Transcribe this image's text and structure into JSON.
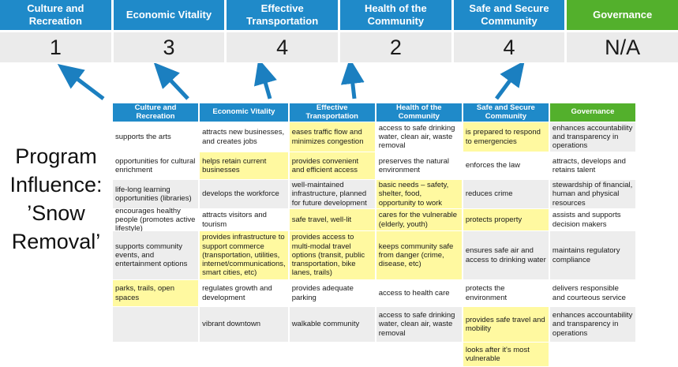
{
  "colors": {
    "blue": "#1F8AC9",
    "green": "#53B02C",
    "arrow": "#1B7FC0",
    "score_bg": "#EBEBEB",
    "band_gray": "#EDEDED",
    "highlight_yellow": "#FFF9A0"
  },
  "left_label": {
    "lines": [
      "Program",
      "Influence:",
      "’Snow",
      "Removal’"
    ]
  },
  "score_band": {
    "columns": [
      {
        "label": "Culture and Recreation",
        "score": "1",
        "color": "blue"
      },
      {
        "label": "Economic Vitality",
        "score": "3",
        "color": "blue"
      },
      {
        "label": "Effective Transportation",
        "score": "4",
        "color": "blue"
      },
      {
        "label": "Health of the Community",
        "score": "2",
        "color": "blue"
      },
      {
        "label": "Safe and Secure Community",
        "score": "4",
        "color": "blue"
      },
      {
        "label": "Governance",
        "score": "N/A",
        "color": "green"
      }
    ]
  },
  "matrix": {
    "headers": [
      {
        "label": "Culture and Recreation",
        "color": "blue"
      },
      {
        "label": "Economic Vitality",
        "color": "blue"
      },
      {
        "label": "Effective Transportation",
        "color": "blue"
      },
      {
        "label": "Health of the Community",
        "color": "blue"
      },
      {
        "label": "Safe and Secure Community",
        "color": "blue"
      },
      {
        "label": "Governance",
        "color": "green"
      }
    ],
    "rows": [
      {
        "cells": [
          {
            "text": "supports the arts",
            "bg": "white"
          },
          {
            "text": "attracts new businesses, and creates jobs",
            "bg": "white"
          },
          {
            "text": "eases traffic flow and minimizes congestion",
            "bg": "yellow"
          },
          {
            "text": "access to safe drinking water, clean air, waste removal",
            "bg": "white"
          },
          {
            "text": "is prepared to respond to emergencies",
            "bg": "yellow"
          },
          {
            "text": "enhances accountability and transparency in operations",
            "bg": "gray"
          }
        ]
      },
      {
        "cells": [
          {
            "text": "opportunities for cultural enrichment",
            "bg": "white"
          },
          {
            "text": "helps retain current businesses",
            "bg": "yellow"
          },
          {
            "text": "provides convenient and efficient access",
            "bg": "yellow"
          },
          {
            "text": "preserves the natural environment",
            "bg": "white"
          },
          {
            "text": "enforces the law",
            "bg": "white"
          },
          {
            "text": "attracts, develops and retains talent",
            "bg": "white"
          }
        ]
      },
      {
        "cells": [
          {
            "text": "life-long learning opportunities (libraries)",
            "bg": "gray"
          },
          {
            "text": "develops the workforce",
            "bg": "gray"
          },
          {
            "text": "well-maintained infrastructure, planned for future development",
            "bg": "gray"
          },
          {
            "text": "basic needs – safety, shelter, food, opportunity to work",
            "bg": "yellow"
          },
          {
            "text": "reduces crime",
            "bg": "gray"
          },
          {
            "text": "stewardship of financial, human and physical resources",
            "bg": "gray"
          }
        ]
      },
      {
        "cells": [
          {
            "text": "encourages healthy people (promotes active lifestyle)",
            "bg": "white"
          },
          {
            "text": "attracts visitors and tourism",
            "bg": "white"
          },
          {
            "text": "safe travel, well-lit",
            "bg": "yellow"
          },
          {
            "text": "cares for the vulnerable (elderly, youth)",
            "bg": "yellow"
          },
          {
            "text": "protects property",
            "bg": "yellow"
          },
          {
            "text": "assists and supports decision makers",
            "bg": "white"
          }
        ]
      },
      {
        "cells": [
          {
            "text": "supports community events, and entertainment options",
            "bg": "gray"
          },
          {
            "text": "provides infrastructure to support commerce (transportation, utilities, internet/communications, smart cities, etc)",
            "bg": "yellow"
          },
          {
            "text": "provides access to multi-modal travel options (transit, public transportation, bike lanes, trails)",
            "bg": "yellow"
          },
          {
            "text": "keeps community safe from danger (crime, disease, etc)",
            "bg": "yellow"
          },
          {
            "text": "ensures safe air and access to drinking water",
            "bg": "gray"
          },
          {
            "text": "maintains regulatory compliance",
            "bg": "gray"
          }
        ]
      },
      {
        "cells": [
          {
            "text": "parks, trails, open spaces",
            "bg": "yellow"
          },
          {
            "text": "regulates growth and development",
            "bg": "white"
          },
          {
            "text": "provides adequate parking",
            "bg": "white"
          },
          {
            "text": "access to health care",
            "bg": "white"
          },
          {
            "text": "protects the environment",
            "bg": "white"
          },
          {
            "text": "delivers responsible and courteous service",
            "bg": "white"
          }
        ]
      },
      {
        "cells": [
          {
            "text": "",
            "bg": "gray"
          },
          {
            "text": "vibrant downtown",
            "bg": "gray"
          },
          {
            "text": "walkable community",
            "bg": "gray"
          },
          {
            "text": "access to safe drinking water, clean air, waste removal",
            "bg": "gray"
          },
          {
            "text": "provides safe travel and mobility",
            "bg": "yellow"
          },
          {
            "text": "enhances accountability and transparency in operations",
            "bg": "gray"
          }
        ]
      },
      {
        "cells": [
          {
            "text": "",
            "bg": "white"
          },
          {
            "text": "",
            "bg": "white"
          },
          {
            "text": "",
            "bg": "white"
          },
          {
            "text": "",
            "bg": "white"
          },
          {
            "text": "looks after it's most vulnerable",
            "bg": "yellow"
          },
          {
            "text": "",
            "bg": "white"
          }
        ]
      }
    ]
  }
}
